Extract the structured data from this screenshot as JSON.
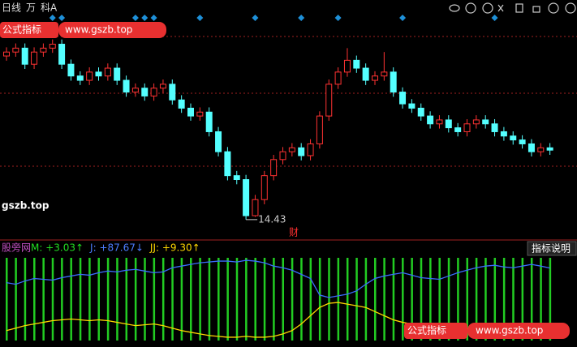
{
  "toolbar": {
    "period": "日线",
    "unit": "万",
    "name": "科A"
  },
  "watermark": {
    "badge": "公式指标",
    "url": "www.gszb.top",
    "site": "gszb.top"
  },
  "marker_text": "财",
  "help_button": "指标说明",
  "chart_data": [
    {
      "type": "candlestick",
      "color_up": "#ff3232",
      "color_down": "#54ffff",
      "signal_color": "#1e90d8",
      "ylim": [
        14.2,
        19.2
      ],
      "open": [
        18.6,
        18.7,
        18.8,
        18.39,
        18.7,
        18.8,
        18.9,
        18.39,
        18.09,
        17.98,
        18.19,
        18.09,
        18.29,
        17.98,
        17.68,
        17.78,
        17.58,
        17.78,
        17.88,
        17.48,
        17.27,
        17.07,
        17.17,
        16.67,
        16.16,
        15.55,
        15.45,
        14.53,
        14.94,
        15.55,
        15.96,
        16.16,
        16.26,
        16.06,
        16.36,
        17.07,
        17.88,
        18.19,
        18.49,
        18.29,
        17.98,
        18.09,
        18.19,
        17.68,
        17.38,
        17.27,
        17.07,
        16.87,
        16.97,
        16.77,
        16.67,
        16.87,
        16.97,
        16.87,
        16.67,
        16.56,
        16.46,
        16.36,
        16.16,
        16.26
      ],
      "high": [
        18.82,
        18.92,
        18.92,
        18.82,
        18.92,
        19.02,
        19.02,
        18.51,
        18.21,
        18.31,
        18.31,
        18.41,
        18.41,
        18.1,
        17.9,
        17.9,
        17.9,
        18.0,
        18.0,
        17.6,
        17.39,
        17.29,
        17.29,
        16.79,
        16.28,
        15.67,
        15.57,
        15.06,
        15.67,
        16.08,
        16.28,
        16.38,
        16.38,
        16.48,
        17.19,
        18.0,
        18.31,
        18.8,
        18.61,
        18.41,
        18.21,
        18.7,
        18.31,
        17.8,
        17.5,
        17.39,
        17.19,
        17.09,
        17.09,
        16.89,
        16.99,
        17.09,
        17.09,
        16.99,
        16.79,
        16.68,
        16.58,
        16.48,
        16.38,
        16.38
      ],
      "low": [
        18.48,
        18.58,
        18.27,
        18.27,
        18.58,
        18.68,
        18.27,
        17.97,
        17.86,
        17.86,
        17.97,
        17.97,
        17.86,
        17.56,
        17.56,
        17.46,
        17.46,
        17.66,
        17.36,
        17.15,
        16.95,
        16.95,
        16.55,
        16.04,
        15.43,
        15.33,
        14.43,
        14.5,
        14.82,
        15.43,
        15.84,
        16.04,
        15.94,
        15.94,
        16.24,
        16.95,
        17.76,
        18.07,
        18.17,
        17.86,
        17.86,
        17.97,
        17.56,
        17.26,
        17.15,
        16.95,
        16.75,
        16.75,
        16.65,
        16.55,
        16.55,
        16.75,
        16.75,
        16.55,
        16.44,
        16.34,
        16.24,
        16.04,
        16.04,
        16.08
      ],
      "close": [
        18.7,
        18.8,
        18.39,
        18.7,
        18.8,
        18.9,
        18.39,
        18.09,
        17.98,
        18.19,
        18.09,
        18.29,
        17.98,
        17.68,
        17.78,
        17.58,
        17.78,
        17.88,
        17.48,
        17.27,
        17.07,
        17.17,
        16.67,
        16.16,
        15.55,
        15.45,
        14.53,
        14.94,
        15.55,
        15.96,
        16.16,
        16.26,
        16.06,
        16.36,
        17.07,
        17.88,
        18.19,
        18.49,
        18.29,
        17.98,
        18.09,
        18.19,
        17.68,
        17.38,
        17.27,
        17.07,
        16.87,
        16.97,
        16.77,
        16.67,
        16.87,
        16.97,
        16.87,
        16.67,
        16.56,
        16.46,
        16.36,
        16.16,
        16.26,
        16.2
      ],
      "signals": [
        5,
        6,
        14,
        15,
        16,
        21,
        27,
        32,
        36,
        43,
        53
      ]
    },
    {
      "type": "indicator",
      "title": "股旁网",
      "ylim": [
        0,
        100
      ],
      "legend": [
        {
          "label": "M: +3.03↑",
          "color": "#22dd22"
        },
        {
          "label": "J: +87.67↓",
          "color": "#4d7dff"
        },
        {
          "label": "JJ: +9.30↑",
          "color": "#ffd700"
        }
      ],
      "bars": {
        "color": "#22cc22",
        "values": [
          100,
          100,
          100,
          100,
          100,
          100,
          100,
          100,
          100,
          100,
          100,
          100,
          100,
          100,
          100,
          100,
          100,
          100,
          100,
          100,
          100,
          100,
          100,
          100,
          100,
          100,
          100,
          100,
          100,
          100,
          100,
          100,
          100,
          100,
          100,
          100,
          100,
          100,
          100,
          100,
          100,
          100,
          100,
          100,
          100,
          100,
          100,
          100,
          100,
          100,
          100,
          100,
          100,
          100,
          100,
          100,
          100,
          100,
          100,
          100
        ]
      },
      "series": [
        {
          "name": "J",
          "color": "#3b6cff",
          "values": [
            70,
            68,
            72,
            75,
            74,
            73,
            76,
            78,
            80,
            79,
            82,
            84,
            83,
            85,
            86,
            84,
            82,
            83,
            88,
            90,
            92,
            94,
            95,
            96,
            96,
            95,
            97,
            96,
            94,
            90,
            88,
            85,
            80,
            75,
            55,
            52,
            54,
            56,
            60,
            68,
            75,
            78,
            80,
            82,
            79,
            76,
            75,
            74,
            78,
            82,
            85,
            88,
            90,
            91,
            89,
            88,
            90,
            92,
            90,
            87.67
          ]
        },
        {
          "name": "JJ",
          "color": "#ffd700",
          "values": [
            12,
            15,
            18,
            20,
            22,
            24,
            25,
            26,
            25,
            24,
            25,
            24,
            22,
            20,
            18,
            19,
            20,
            18,
            15,
            12,
            10,
            8,
            6,
            5,
            4,
            4,
            5,
            4,
            4,
            5,
            8,
            12,
            20,
            30,
            40,
            45,
            46,
            44,
            42,
            40,
            35,
            30,
            25,
            22,
            20,
            18,
            15,
            12,
            10,
            12,
            14,
            15,
            16,
            14,
            12,
            10,
            11,
            12,
            10,
            9.3
          ]
        }
      ]
    }
  ]
}
